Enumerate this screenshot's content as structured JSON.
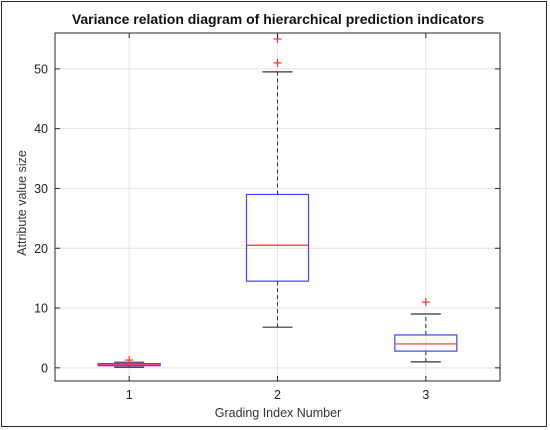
{
  "chart_data": {
    "type": "boxplot",
    "title": "Variance relation diagram of hierarchical prediction indicators",
    "xlabel": "Grading Index Number",
    "ylabel": "Attribute value size",
    "ylim": [
      -2.2,
      56
    ],
    "yticks": [
      0,
      10,
      20,
      30,
      40,
      50
    ],
    "grid": true,
    "colors": {
      "box": "#4040ff",
      "median": "#ff3030",
      "whisker": "#333333",
      "outlier": "#ff3030"
    },
    "boxes": [
      {
        "category": "1",
        "min": 0.1,
        "q1": 0.35,
        "median": 0.5,
        "q3": 0.7,
        "max": 0.95,
        "outliers": [
          1.3
        ]
      },
      {
        "category": "2",
        "min": 6.8,
        "q1": 14.5,
        "median": 20.5,
        "q3": 29,
        "max": 49.5,
        "outliers": [
          51,
          55
        ]
      },
      {
        "category": "3",
        "min": 1,
        "q1": 2.8,
        "median": 4,
        "q3": 5.5,
        "max": 9,
        "outliers": [
          11
        ]
      }
    ]
  }
}
